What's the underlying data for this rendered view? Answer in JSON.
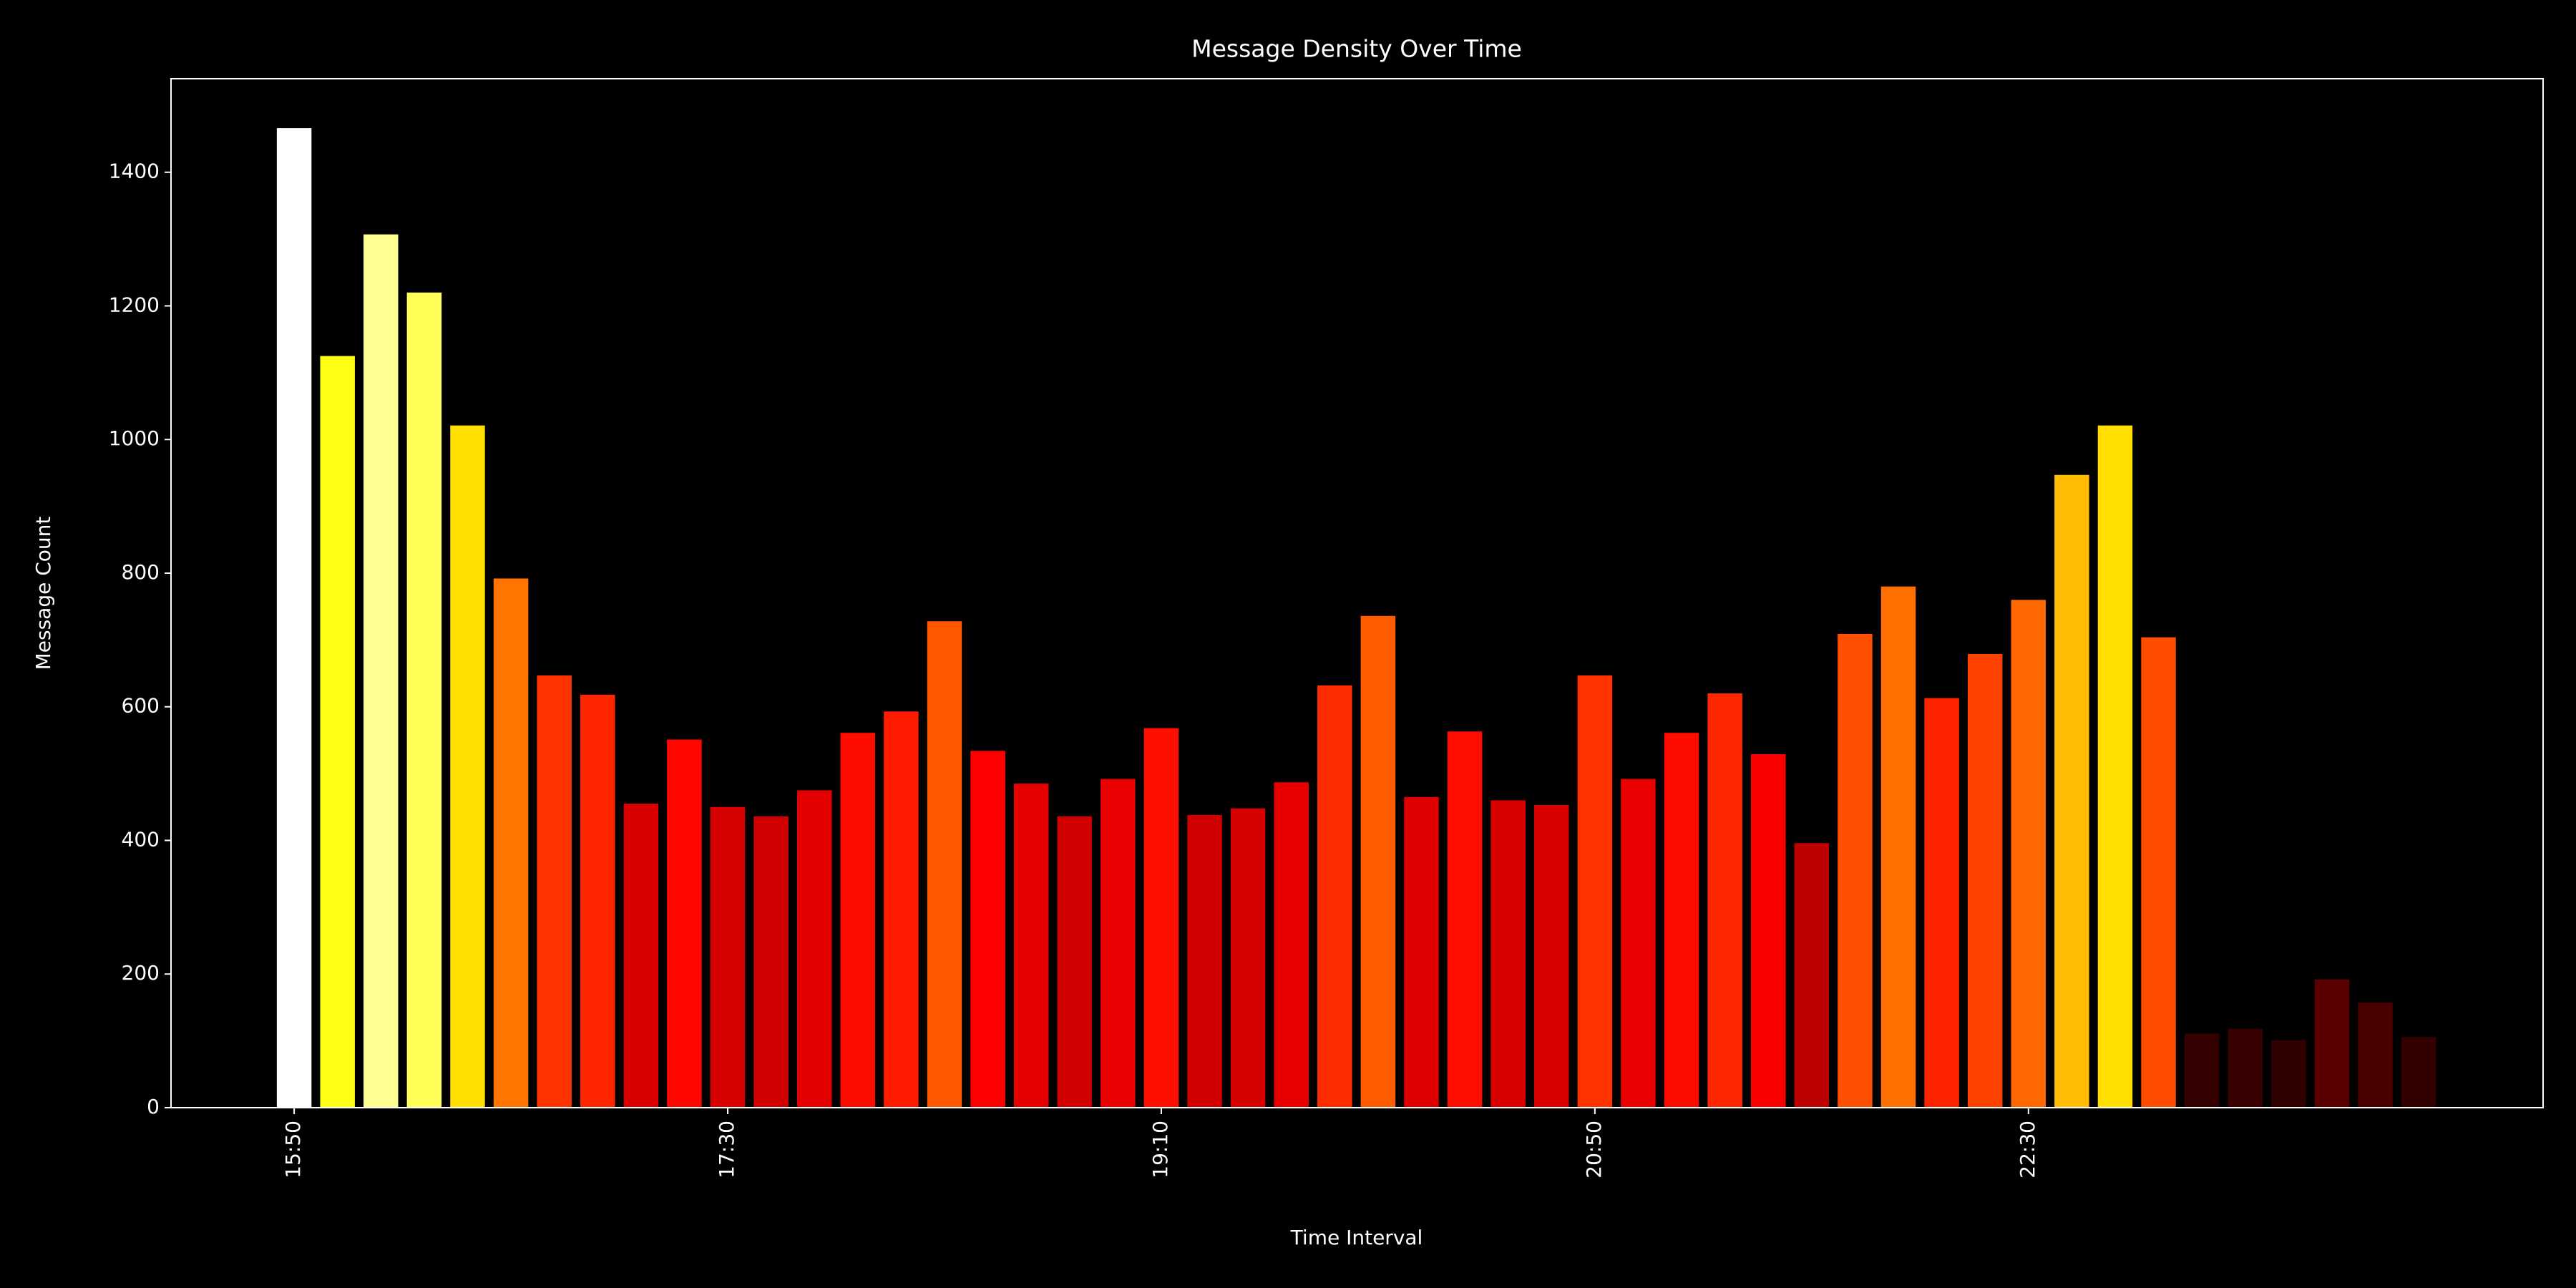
{
  "chart_data": {
    "type": "bar",
    "title": "Message Density Over Time",
    "x_label": "Time Interval",
    "y_label": "Message Count",
    "categories": [
      "15:50",
      null,
      null,
      null,
      null,
      null,
      null,
      null,
      null,
      null,
      "17:30",
      null,
      null,
      null,
      null,
      null,
      null,
      null,
      null,
      null,
      "19:10",
      null,
      null,
      null,
      null,
      null,
      null,
      null,
      null,
      null,
      "20:50",
      null,
      null,
      null,
      null,
      null,
      null,
      null,
      null,
      null,
      "22:30",
      null,
      null,
      null,
      null,
      null,
      null,
      null,
      null,
      null
    ],
    "values": [
      1466,
      1125,
      1307,
      1220,
      1021,
      792,
      647,
      618,
      455,
      551,
      450,
      436,
      475,
      561,
      593,
      728,
      534,
      485,
      436,
      492,
      568,
      438,
      448,
      487,
      632,
      736,
      465,
      563,
      460,
      453,
      647,
      492,
      561,
      620,
      529,
      396,
      709,
      780,
      613,
      679,
      760,
      947,
      1021,
      704,
      111,
      118,
      101,
      192,
      157,
      106
    ],
    "colormap": "hot",
    "ylim": [
      0,
      1540
    ],
    "yticks": [
      0,
      200,
      400,
      600,
      800,
      1000,
      1200,
      1400
    ]
  }
}
